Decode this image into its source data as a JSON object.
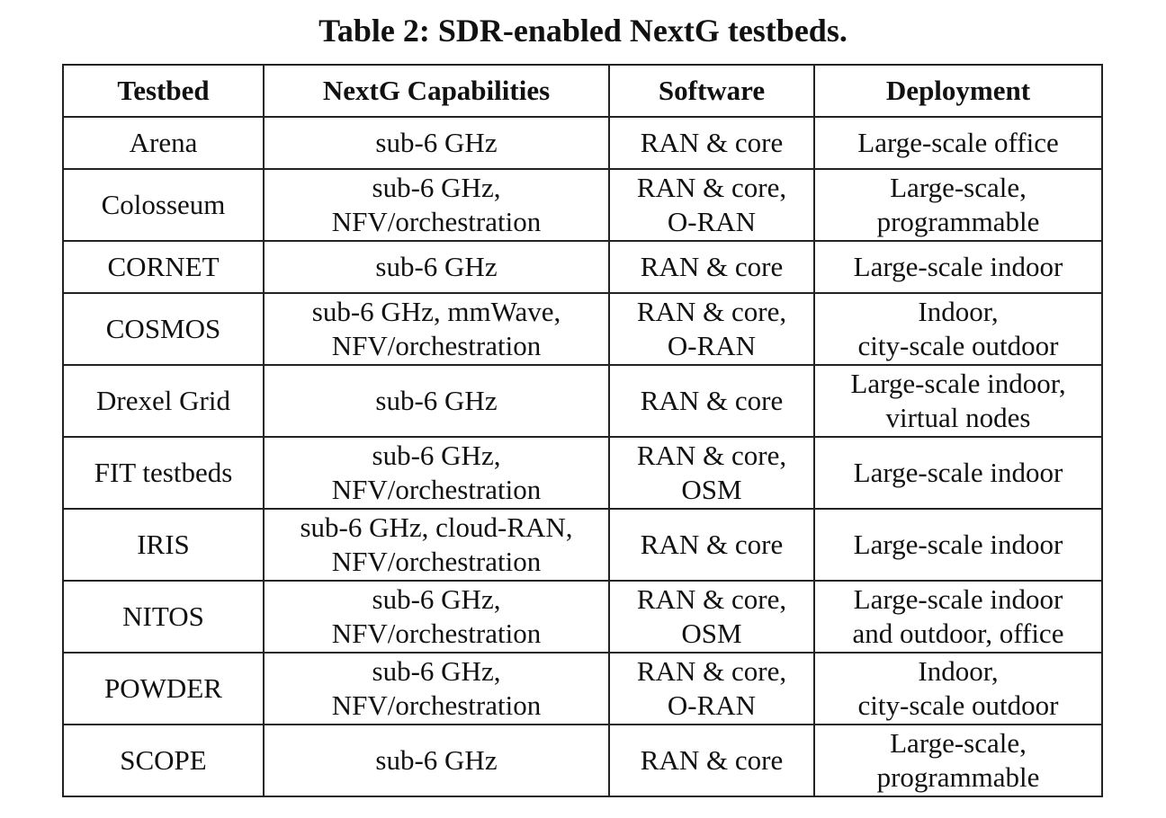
{
  "caption": "Table 2: SDR-enabled NextG testbeds.",
  "columns": [
    "Testbed",
    "NextG Capabilities",
    "Software",
    "Deployment"
  ],
  "rows": [
    {
      "testbed": "Arena",
      "capabilities": [
        "sub-6 GHz"
      ],
      "software": [
        "RAN & core"
      ],
      "deployment": [
        "Large-scale office"
      ]
    },
    {
      "testbed": "Colosseum",
      "capabilities": [
        "sub-6 GHz,",
        "NFV/orchestration"
      ],
      "software": [
        "RAN & core,",
        "O-RAN"
      ],
      "deployment": [
        "Large-scale,",
        "programmable"
      ]
    },
    {
      "testbed": "CORNET",
      "capabilities": [
        "sub-6 GHz"
      ],
      "software": [
        "RAN & core"
      ],
      "deployment": [
        "Large-scale indoor"
      ]
    },
    {
      "testbed": "COSMOS",
      "capabilities": [
        "sub-6 GHz, mmWave,",
        "NFV/orchestration"
      ],
      "software": [
        "RAN & core,",
        "O-RAN"
      ],
      "deployment": [
        "Indoor,",
        "city-scale outdoor"
      ]
    },
    {
      "testbed": "Drexel Grid",
      "capabilities": [
        "sub-6 GHz"
      ],
      "software": [
        "RAN & core"
      ],
      "deployment": [
        "Large-scale indoor,",
        "virtual nodes"
      ]
    },
    {
      "testbed": "FIT testbeds",
      "capabilities": [
        "sub-6 GHz,",
        "NFV/orchestration"
      ],
      "software": [
        "RAN & core,",
        "OSM"
      ],
      "deployment": [
        "Large-scale indoor"
      ]
    },
    {
      "testbed": "IRIS",
      "capabilities": [
        "sub-6 GHz, cloud-RAN,",
        "NFV/orchestration"
      ],
      "software": [
        "RAN & core"
      ],
      "deployment": [
        "Large-scale indoor"
      ]
    },
    {
      "testbed": "NITOS",
      "capabilities": [
        "sub-6 GHz,",
        "NFV/orchestration"
      ],
      "software": [
        "RAN & core,",
        "OSM"
      ],
      "deployment": [
        "Large-scale indoor",
        "and outdoor, office"
      ]
    },
    {
      "testbed": "POWDER",
      "capabilities": [
        "sub-6 GHz,",
        "NFV/orchestration"
      ],
      "software": [
        "RAN & core,",
        "O-RAN"
      ],
      "deployment": [
        "Indoor,",
        "city-scale outdoor"
      ]
    },
    {
      "testbed": "SCOPE",
      "capabilities": [
        "sub-6 GHz"
      ],
      "software": [
        "RAN & core"
      ],
      "deployment": [
        "Large-scale,",
        "programmable"
      ]
    }
  ]
}
